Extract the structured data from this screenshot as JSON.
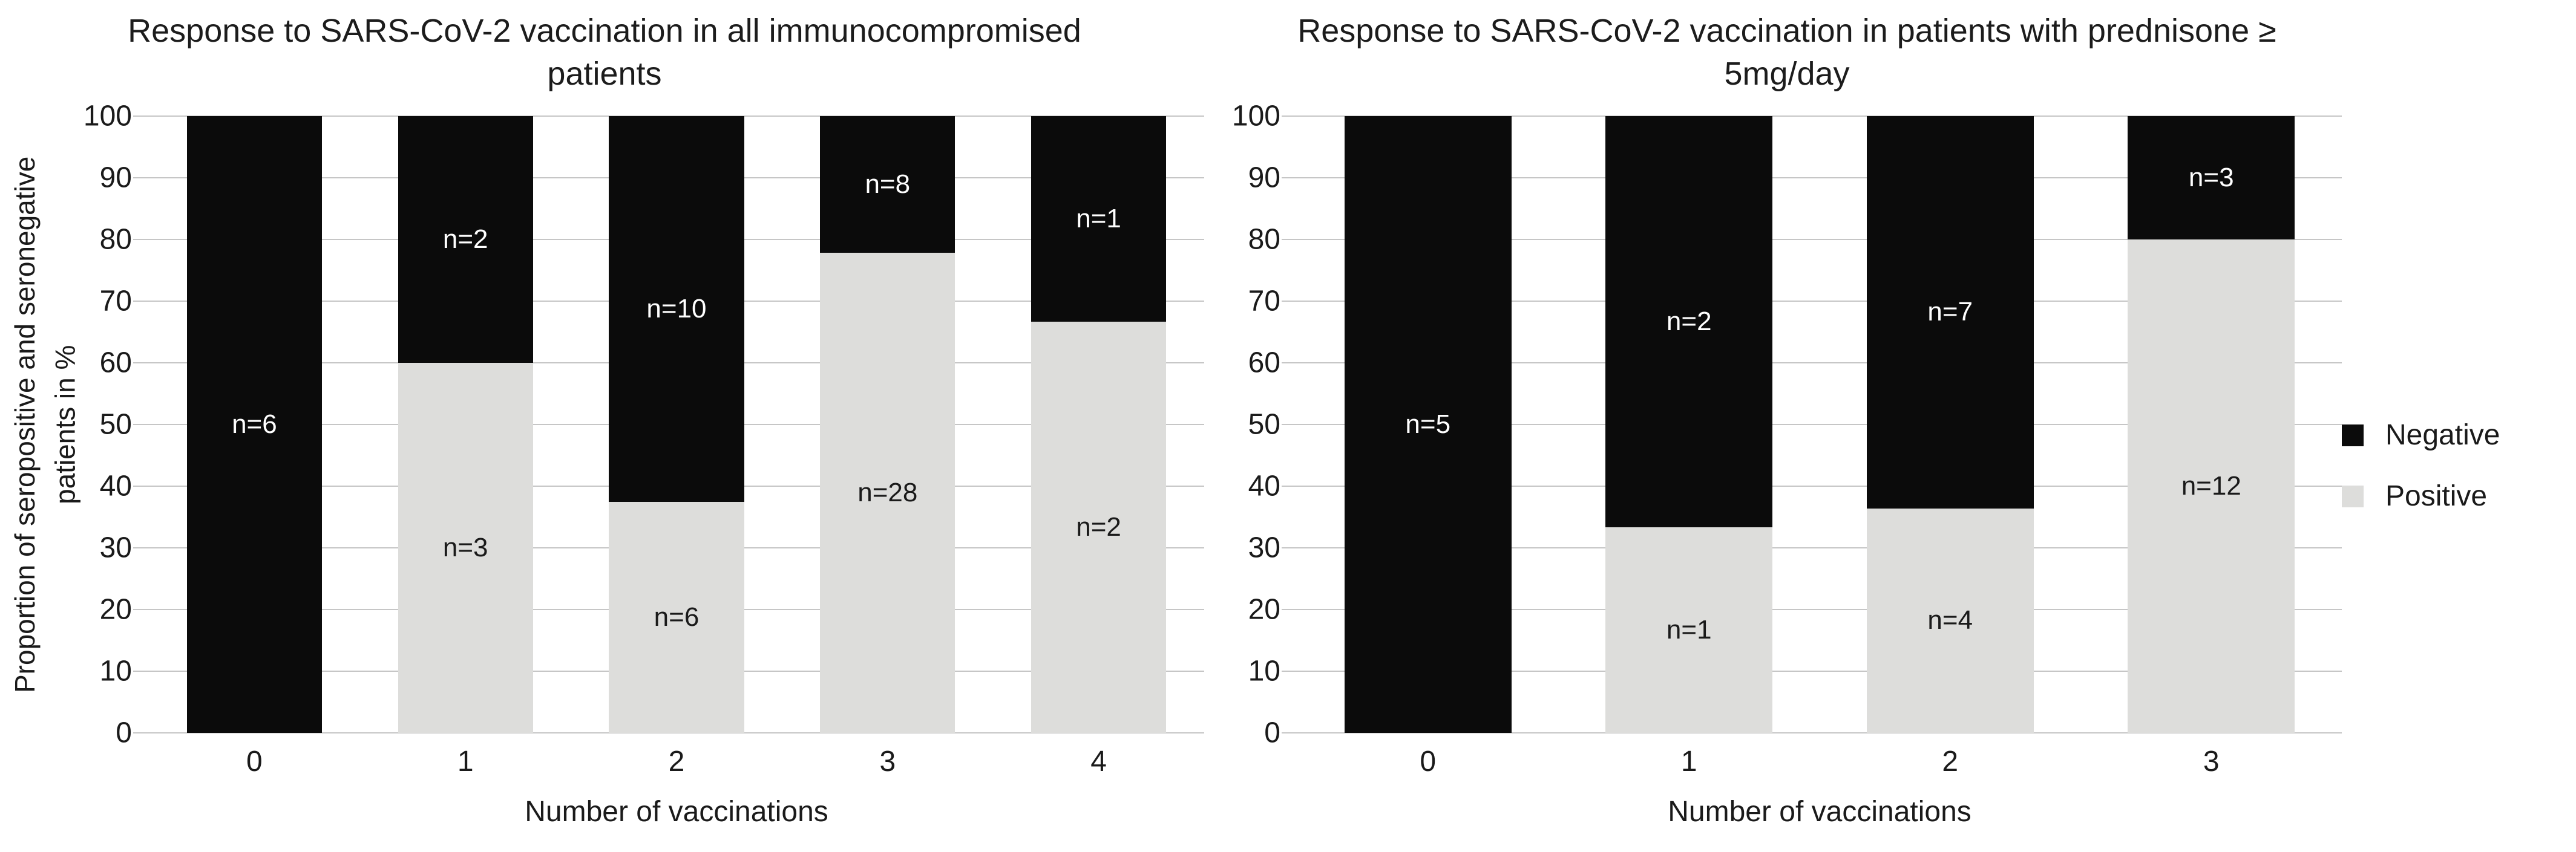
{
  "legend": {
    "position": "right",
    "items": [
      {
        "label": "Negative",
        "color": "#0b0b0b"
      },
      {
        "label": "Positive",
        "color": "#dddddb"
      }
    ]
  },
  "colors": {
    "negative": "#0b0b0b",
    "positive": "#dddddb",
    "gridline": "#c6c6c6",
    "label_on_negative": "#ffffff",
    "label_on_positive": "#1a1a1a",
    "background": "#ffffff"
  },
  "chart_data": [
    {
      "type": "bar",
      "stacked": true,
      "title": "Response to SARS-CoV-2 vaccination in all immunocompromised patients",
      "xlabel": "Number of vaccinations",
      "ylabel": "Proportion of seropositive and seronegative patients in %",
      "ylim": [
        0,
        100
      ],
      "yticks": [
        0,
        10,
        20,
        30,
        40,
        50,
        60,
        70,
        80,
        90,
        100
      ],
      "grid": true,
      "categories": [
        "0",
        "1",
        "2",
        "3",
        "4"
      ],
      "series": [
        {
          "name": "Negative",
          "color": "#0b0b0b",
          "label_color": "#ffffff",
          "counts": [
            6,
            2,
            10,
            8,
            1
          ],
          "values_pct": [
            100,
            40,
            62.5,
            22.2,
            33.3
          ],
          "labels": [
            "n=6",
            "n=2",
            "n=10",
            "n=8",
            "n=1"
          ]
        },
        {
          "name": "Positive",
          "color": "#dddddb",
          "label_color": "#1a1a1a",
          "counts": [
            0,
            3,
            6,
            28,
            2
          ],
          "values_pct": [
            0,
            60,
            37.5,
            77.8,
            66.7
          ],
          "labels": [
            "",
            "n=3",
            "n=6",
            "n=28",
            "n=2"
          ]
        }
      ]
    },
    {
      "type": "bar",
      "stacked": true,
      "title": "Response to SARS-CoV-2 vaccination in patients with prednisone ≥ 5mg/day",
      "xlabel": "Number of vaccinations",
      "ylabel": "",
      "ylim": [
        0,
        100
      ],
      "yticks": [
        0,
        10,
        20,
        30,
        40,
        50,
        60,
        70,
        80,
        90,
        100
      ],
      "grid": true,
      "categories": [
        "0",
        "1",
        "2",
        "3"
      ],
      "series": [
        {
          "name": "Negative",
          "color": "#0b0b0b",
          "label_color": "#ffffff",
          "counts": [
            5,
            2,
            7,
            3
          ],
          "values_pct": [
            100,
            66.7,
            63.6,
            20
          ],
          "labels": [
            "n=5",
            "n=2",
            "n=7",
            "n=3"
          ]
        },
        {
          "name": "Positive",
          "color": "#dddddb",
          "label_color": "#1a1a1a",
          "counts": [
            0,
            1,
            4,
            12
          ],
          "values_pct": [
            0,
            33.3,
            36.4,
            80
          ],
          "labels": [
            "",
            "n=1",
            "n=4",
            "n=12"
          ]
        }
      ]
    }
  ]
}
